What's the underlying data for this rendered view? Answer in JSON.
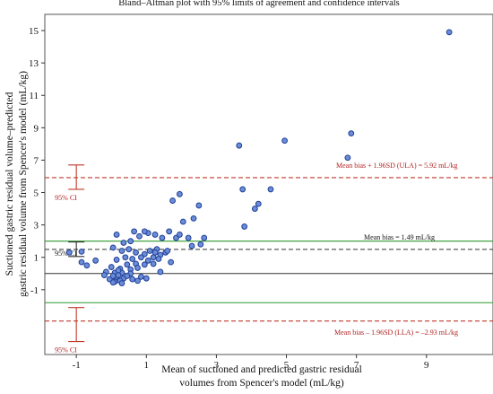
{
  "chart_data": {
    "type": "scatter",
    "title": "Bland–Altman plot with 95% limits of agreement and confidence intervals",
    "xlabel": [
      "Mean of suctioned and predicted gastric residual",
      "volumes from Spencer's model (mL/kg)"
    ],
    "ylabel": [
      "Suctioned gastric residual volume–predicted",
      "gastric residual volume from Spencer's model (mL/kg)"
    ],
    "xlim": [
      -1.9,
      10.9
    ],
    "ylim": [
      -5.0,
      16.0
    ],
    "xticks": [
      -1,
      1,
      3,
      5,
      7,
      9
    ],
    "yticks": [
      -1,
      1,
      3,
      5,
      7,
      9,
      11,
      13,
      15
    ],
    "colors": {
      "point_fill": "#6b8dd6",
      "point_stroke": "#1f3f99",
      "limit": "#c0392b",
      "bias": "#333333",
      "ci_green": "#2e9a2e",
      "zero": "#333333"
    },
    "lines": {
      "zero": 0,
      "bias": 1.49,
      "ula": 5.92,
      "lla": -2.93,
      "bias_ci": [
        1.0,
        2.0
      ],
      "lla_ci_green": -1.8
    },
    "annotations": {
      "ula": "Mean bias + 1.96SD (ULA) = 5.92 mL/kg",
      "bias": "Mean bias = 1.49 mL/kg",
      "lla": "Mean bias – 1.96SD (LLA) = –2.93 mL/kg",
      "ci": "95% CI"
    },
    "ci_bars": [
      {
        "x": -1.0,
        "low": 5.2,
        "high": 6.7
      },
      {
        "x": -1.0,
        "low": 1.05,
        "high": 1.95
      },
      {
        "x": -1.0,
        "low": -4.2,
        "high": -2.1
      }
    ],
    "points": [
      [
        9.65,
        14.9
      ],
      [
        6.85,
        8.65
      ],
      [
        6.75,
        7.15
      ],
      [
        4.95,
        8.2
      ],
      [
        3.65,
        7.9
      ],
      [
        3.75,
        5.2
      ],
      [
        4.1,
        4.0
      ],
      [
        4.2,
        4.3
      ],
      [
        3.8,
        2.9
      ],
      [
        4.55,
        5.2
      ],
      [
        2.5,
        4.2
      ],
      [
        1.95,
        4.9
      ],
      [
        1.75,
        4.5
      ],
      [
        2.35,
        3.4
      ],
      [
        2.05,
        3.2
      ],
      [
        2.2,
        2.2
      ],
      [
        2.65,
        2.2
      ],
      [
        2.3,
        1.7
      ],
      [
        2.55,
        1.8
      ],
      [
        1.65,
        2.6
      ],
      [
        1.85,
        2.2
      ],
      [
        1.95,
        2.4
      ],
      [
        1.05,
        2.5
      ],
      [
        1.25,
        2.4
      ],
      [
        0.8,
        2.3
      ],
      [
        0.55,
        2.0
      ],
      [
        0.65,
        2.6
      ],
      [
        0.95,
        2.6
      ],
      [
        1.45,
        2.2
      ],
      [
        0.35,
        1.9
      ],
      [
        0.15,
        2.4
      ],
      [
        -1.2,
        1.3
      ],
      [
        -0.85,
        1.35
      ],
      [
        -0.85,
        0.7
      ],
      [
        -0.7,
        0.5
      ],
      [
        -0.45,
        0.8
      ],
      [
        0.05,
        1.6
      ],
      [
        0.3,
        1.4
      ],
      [
        0.5,
        1.5
      ],
      [
        0.7,
        1.3
      ],
      [
        0.95,
        1.2
      ],
      [
        1.1,
        1.4
      ],
      [
        1.3,
        1.5
      ],
      [
        1.55,
        1.3
      ],
      [
        1.4,
        1.15
      ],
      [
        1.25,
        1.3
      ],
      [
        1.6,
        1.4
      ],
      [
        0.15,
        0.85
      ],
      [
        0.4,
        1.0
      ],
      [
        0.6,
        0.9
      ],
      [
        0.85,
        1.0
      ],
      [
        1.05,
        0.8
      ],
      [
        1.2,
        1.0
      ],
      [
        1.35,
        0.9
      ],
      [
        0.45,
        0.55
      ],
      [
        0.7,
        0.6
      ],
      [
        0.95,
        0.55
      ],
      [
        1.2,
        0.6
      ],
      [
        0.25,
        0.3
      ],
      [
        0.55,
        0.25
      ],
      [
        0.75,
        0.35
      ],
      [
        0.0,
        0.4
      ],
      [
        -0.15,
        0.1
      ],
      [
        0.1,
        0.05
      ],
      [
        0.3,
        0.05
      ],
      [
        0.55,
        0.0
      ],
      [
        0.15,
        -0.2
      ],
      [
        0.35,
        -0.3
      ],
      [
        0.6,
        -0.35
      ],
      [
        0.85,
        -0.2
      ],
      [
        -0.05,
        -0.35
      ],
      [
        0.1,
        -0.5
      ],
      [
        0.25,
        -0.45
      ],
      [
        0.45,
        -0.15
      ],
      [
        0.05,
        -0.15
      ],
      [
        -0.2,
        -0.1
      ],
      [
        0.2,
        -0.1
      ],
      [
        1.0,
        -0.3
      ],
      [
        0.75,
        -0.45
      ],
      [
        0.05,
        -0.55
      ],
      [
        0.3,
        -0.6
      ],
      [
        1.4,
        0.1
      ],
      [
        1.7,
        0.7
      ],
      [
        0.2,
        0.2
      ]
    ]
  }
}
